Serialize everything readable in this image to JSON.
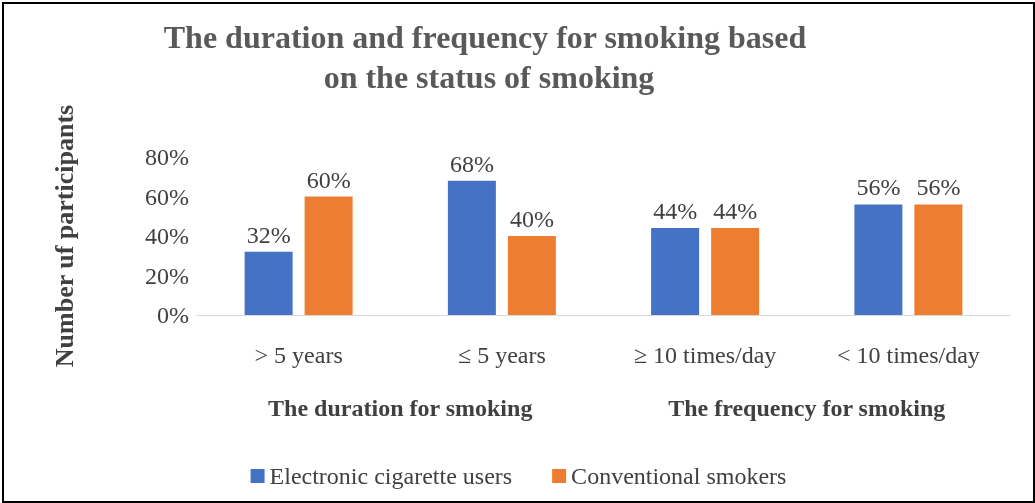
{
  "chart_data": {
    "type": "bar",
    "title": "The duration and frequency for smoking based on the status of smoking",
    "ylabel": "Number uf participants",
    "categories": [
      "> 5 years",
      "≤ 5 years",
      "≥ 10 times/day",
      "< 10 times/day"
    ],
    "series": [
      {
        "name": "Electronic cigarette users",
        "color": "#4472c4",
        "values": [
          32,
          68,
          44,
          56
        ],
        "value_labels": [
          "32%",
          "68%",
          "44%",
          "56%"
        ]
      },
      {
        "name": "Conventional smokers",
        "color": "#ed7d31",
        "values": [
          60,
          40,
          44,
          56
        ],
        "value_labels": [
          "60%",
          "40%",
          "44%",
          "56%"
        ]
      }
    ],
    "ylim": [
      0,
      80
    ],
    "yticks": [
      {
        "value": 0,
        "label": "0%"
      },
      {
        "value": 20,
        "label": "20%"
      },
      {
        "value": 40,
        "label": "40%"
      },
      {
        "value": 60,
        "label": "60%"
      },
      {
        "value": 80,
        "label": "80%"
      }
    ],
    "annotations": [
      "The duration for smoking",
      "The frequency for smoking"
    ],
    "grid": false,
    "legend": "bottom"
  }
}
